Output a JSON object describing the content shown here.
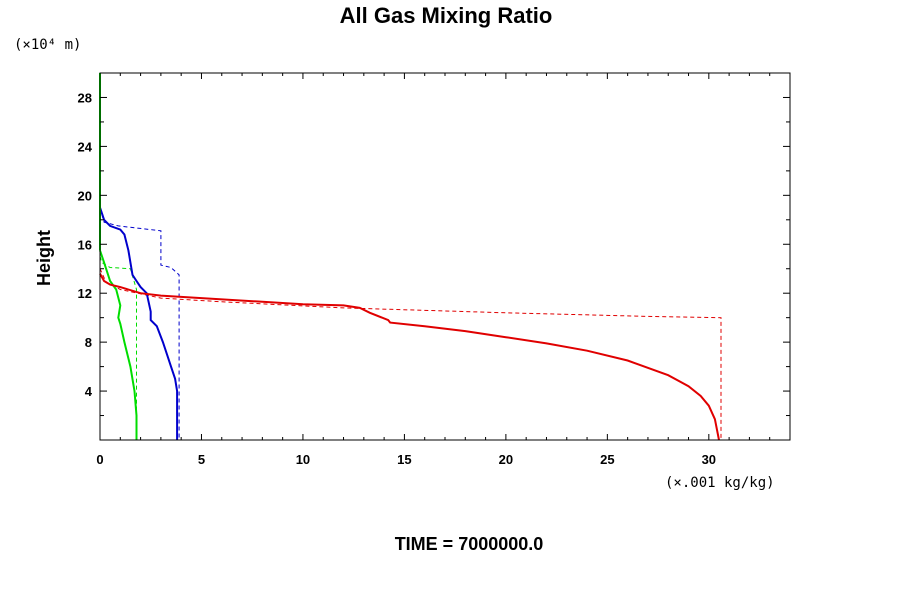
{
  "chart_data": {
    "type": "line",
    "title": "All Gas Mixing Ratio",
    "ylabel": "Height",
    "y_unit_label": "(×10⁴ m)",
    "x_unit_label": "(×.001 kg/kg)",
    "footer": "TIME = 7000000.0",
    "xlim": [
      0,
      34
    ],
    "ylim": [
      0,
      30
    ],
    "x_ticks": [
      0,
      5,
      10,
      15,
      20,
      25,
      30
    ],
    "x_tick_labels": [
      "0",
      "5",
      "10",
      "15",
      "20",
      "25",
      "30"
    ],
    "y_ticks": [
      4,
      8,
      12,
      16,
      20,
      24,
      28
    ],
    "y_tick_labels": [
      "4",
      "8",
      "12",
      "16",
      "20",
      "24",
      "28"
    ],
    "grid": false,
    "colors": {
      "red": "#e00000",
      "blue": "#0000cc",
      "green": "#00dd00"
    },
    "series": [
      {
        "color": "#0000cc",
        "style": "dashed",
        "x": [
          0.0,
          0.2,
          0.9,
          3.0,
          3.0,
          3.5,
          3.9,
          3.9
        ],
        "y": [
          19.0,
          17.8,
          17.5,
          17.1,
          14.3,
          14.1,
          13.5,
          0.0
        ]
      },
      {
        "color": "#00dd00",
        "style": "dashed",
        "x": [
          0.0,
          0.1,
          0.5,
          1.5,
          1.8,
          1.8
        ],
        "y": [
          15.0,
          14.5,
          14.1,
          14.0,
          12.3,
          0.0
        ]
      },
      {
        "color": "#e00000",
        "style": "dashed",
        "x": [
          0.0,
          0.3,
          1.0,
          3.0,
          6.0,
          12.0,
          20.0,
          27.0,
          30.6,
          30.6
        ],
        "y": [
          14.0,
          12.9,
          12.3,
          11.6,
          11.3,
          10.8,
          10.4,
          10.1,
          10.0,
          0.0
        ]
      },
      {
        "color": "#0000cc",
        "style": "solid",
        "x": [
          0.0,
          0.2,
          0.5,
          1.0,
          1.2,
          1.4,
          1.6,
          1.8,
          2.0,
          2.3,
          2.5,
          2.5,
          2.8,
          3.1,
          3.3,
          3.5,
          3.7,
          3.8,
          3.8
        ],
        "y": [
          19.0,
          18.0,
          17.5,
          17.2,
          16.8,
          15.5,
          13.5,
          13.0,
          12.5,
          12.0,
          10.5,
          9.8,
          9.3,
          8.0,
          7.0,
          6.0,
          5.0,
          4.0,
          0.0
        ]
      },
      {
        "color": "#00dd00",
        "style": "solid",
        "x": [
          0.0,
          0.2,
          0.5,
          0.8,
          1.0,
          0.9,
          1.0,
          1.2,
          1.5,
          1.7,
          1.8,
          1.8
        ],
        "y": [
          15.5,
          14.5,
          13.0,
          12.3,
          11.0,
          10.0,
          9.5,
          8.0,
          6.0,
          4.0,
          2.0,
          0.0
        ]
      },
      {
        "color": "#00dd00",
        "style": "solid",
        "x": [
          0.0,
          0.0
        ],
        "y": [
          15.5,
          30.0
        ]
      },
      {
        "color": "#e00000",
        "style": "solid",
        "x": [
          0.0,
          0.2,
          0.5,
          1.0,
          2.0,
          3.0,
          5.0,
          8.0,
          10.0,
          12.0,
          12.8,
          13.3,
          14.2,
          14.3,
          16.0,
          18.0,
          20.0,
          22.0,
          24.0,
          26.0,
          28.0,
          29.0,
          29.6,
          30.0,
          30.3,
          30.5
        ],
        "y": [
          13.6,
          13.0,
          12.7,
          12.5,
          12.0,
          11.8,
          11.6,
          11.3,
          11.1,
          11.0,
          10.8,
          10.4,
          9.8,
          9.6,
          9.3,
          8.9,
          8.4,
          7.9,
          7.3,
          6.5,
          5.3,
          4.4,
          3.6,
          2.8,
          1.7,
          0.0
        ]
      }
    ]
  }
}
